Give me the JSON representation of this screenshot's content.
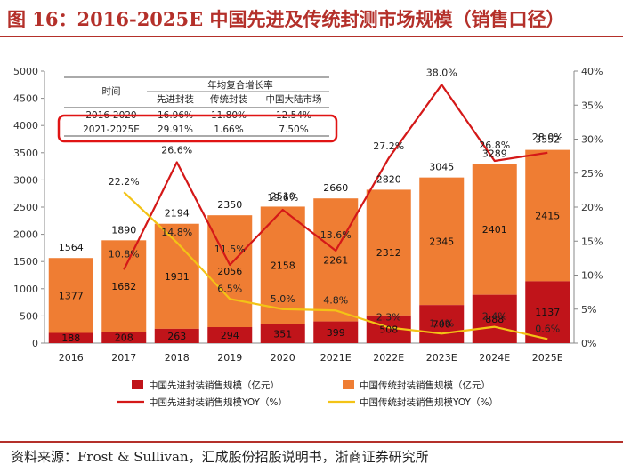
{
  "title": "图 16：2016-2025E 中国先进及传统封测市场规模（销售口径）",
  "source": "资料来源：Frost & Sullivan，汇成股份招股说明书，浙商证券研究所",
  "colors": {
    "advanced_bar": "#c0141a",
    "traditional_bar": "#ef7d33",
    "advanced_line": "#d41818",
    "traditional_line": "#f3c316",
    "highlight_box": "#e01414"
  },
  "table": {
    "header_group": "年均复合增长率",
    "col_time": "时间",
    "col_adv": "先进封装",
    "col_trad": "传统封装",
    "col_market": "中国大陆市场",
    "rows": [
      {
        "period": "2016-2020",
        "adv": "16.96%",
        "trad": "11.80%",
        "market": "12.54%"
      },
      {
        "period": "2021-2025E",
        "adv": "29.91%",
        "trad": "1.66%",
        "market": "7.50%"
      }
    ]
  },
  "chart_data": {
    "type": "bar",
    "stacked": true,
    "categories": [
      "2016",
      "2017",
      "2018",
      "2019",
      "2020",
      "2021E",
      "2022E",
      "2023E",
      "2024E",
      "2025E"
    ],
    "series": [
      {
        "name": "中国先进封装销售规模（亿元）",
        "type": "bar",
        "axis": "left",
        "values": [
          188,
          208,
          263,
          294,
          351,
          399,
          508,
          700,
          888,
          1137
        ]
      },
      {
        "name": "中国传统封装销售规模（亿元）",
        "type": "bar",
        "axis": "left",
        "values": [
          1377,
          1682,
          1931,
          2056,
          2158,
          2261,
          2312,
          2345,
          2401,
          2415
        ]
      },
      {
        "name": "中国先进封装销售规模YOY（%）",
        "type": "line",
        "axis": "right",
        "values": [
          null,
          10.8,
          26.6,
          11.5,
          19.6,
          13.6,
          27.2,
          38.0,
          26.8,
          28.0
        ],
        "labels": [
          "",
          "10.8%",
          "26.6%",
          "11.5%",
          "19.6%",
          "13.6%",
          "27.2%",
          "38.0%",
          "26.8%",
          "28.0%"
        ]
      },
      {
        "name": "中国传统封装销售规模YOY（%）",
        "type": "line",
        "axis": "right",
        "values": [
          null,
          22.2,
          14.8,
          6.5,
          5.0,
          4.8,
          2.3,
          1.4,
          2.4,
          0.6
        ],
        "labels": [
          "",
          "22.2%",
          "14.8%",
          "6.5%",
          "5.0%",
          "4.8%",
          "2.3%",
          "1.4%",
          "2.4%",
          "0.6%"
        ]
      }
    ],
    "advanced_labels": [
      "188",
      "208",
      "263",
      "294",
      "351",
      "399",
      "508",
      "700",
      "888",
      "1137"
    ],
    "traditional_labels": [
      "1377",
      "1682",
      "1931",
      "2056",
      "2158",
      "2261",
      "2312",
      "2345",
      "2401",
      "2415"
    ],
    "total_labels": [
      "1564",
      "1890",
      "2194",
      "2350",
      "2510",
      "2660",
      "2820",
      "3045",
      "3289",
      "3552"
    ],
    "ylim_left": [
      0,
      5000
    ],
    "yticks_left": [
      "0",
      "500",
      "1000",
      "1500",
      "2000",
      "2500",
      "3000",
      "3500",
      "4000",
      "4500",
      "5000"
    ],
    "ylim_right": [
      0,
      40
    ],
    "yticks_right": [
      "0%",
      "5%",
      "10%",
      "15%",
      "20%",
      "25%",
      "30%",
      "35%",
      "40%"
    ],
    "legend": [
      "中国先进封装销售规模（亿元）",
      "中国传统封装销售规模（亿元）",
      "中国先进封装销售规模YOY（%）",
      "中国传统封装销售规模YOY（%）"
    ]
  }
}
